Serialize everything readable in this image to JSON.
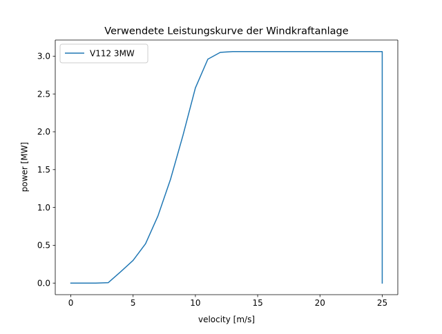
{
  "chart_data": {
    "type": "line",
    "title": "Verwendete Leistungskurve der Windkraftanlage",
    "xlabel": "velocity [m/s]",
    "ylabel": "power [MW]",
    "xlim": [
      -1.25,
      26.25
    ],
    "ylim": [
      -0.153,
      3.213
    ],
    "xticks": [
      0,
      5,
      10,
      15,
      20,
      25
    ],
    "xtick_labels": [
      "0",
      "5",
      "10",
      "15",
      "20",
      "25"
    ],
    "yticks": [
      0.0,
      0.5,
      1.0,
      1.5,
      2.0,
      2.5,
      3.0
    ],
    "ytick_labels": [
      "0.0",
      "0.5",
      "1.0",
      "1.5",
      "2.0",
      "2.5",
      "3.0"
    ],
    "grid": false,
    "legend_position": "upper left",
    "series": [
      {
        "name": "V112 3MW",
        "color": "#1f77b4",
        "x": [
          0,
          1,
          2,
          3,
          4,
          5,
          6,
          7,
          8,
          9,
          10,
          11,
          12,
          13,
          14,
          15,
          16,
          17,
          18,
          19,
          20,
          21,
          22,
          23,
          24,
          25,
          25
        ],
        "y": [
          0,
          0,
          0,
          0.005,
          0.15,
          0.3,
          0.52,
          0.89,
          1.37,
          1.95,
          2.58,
          2.96,
          3.05,
          3.06,
          3.06,
          3.06,
          3.06,
          3.06,
          3.06,
          3.06,
          3.06,
          3.06,
          3.06,
          3.06,
          3.06,
          3.06,
          0
        ]
      }
    ]
  }
}
